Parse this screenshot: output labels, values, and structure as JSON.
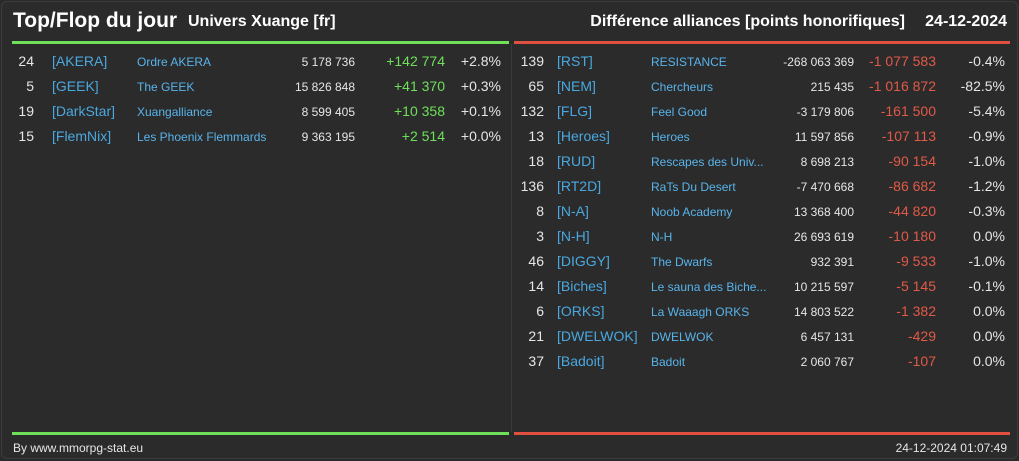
{
  "header": {
    "title": "Top/Flop du jour",
    "subtitle": "Univers Xuange [fr]",
    "metric": "Différence alliances [points honorifiques]",
    "date": "24-12-2024"
  },
  "colors": {
    "top_accent": "#6ee05a",
    "flop_accent": "#e05040",
    "tag": "#4aa8e0"
  },
  "top": [
    {
      "rank": "24",
      "tag": "[AKERA]",
      "name": "Ordre AKERA",
      "points": "5 178 736",
      "diff": "+142 774",
      "pct": "+2.8%"
    },
    {
      "rank": "5",
      "tag": "[GEEK]",
      "name": "The GEEK",
      "points": "15 826 848",
      "diff": "+41 370",
      "pct": "+0.3%"
    },
    {
      "rank": "19",
      "tag": "[DarkStar]",
      "name": "Xuangalliance",
      "points": "8 599 405",
      "diff": "+10 358",
      "pct": "+0.1%"
    },
    {
      "rank": "15",
      "tag": "[FlemNix]",
      "name": "Les Phoenix Flemmards",
      "points": "9 363 195",
      "diff": "+2 514",
      "pct": "+0.0%"
    }
  ],
  "flop": [
    {
      "rank": "139",
      "tag": "[RST]",
      "name": "RESISTANCE",
      "points": "-268 063 369",
      "diff": "-1 077 583",
      "pct": "-0.4%"
    },
    {
      "rank": "65",
      "tag": "[NEM]",
      "name": "Chercheurs",
      "points": "215 435",
      "diff": "-1 016 872",
      "pct": "-82.5%"
    },
    {
      "rank": "132",
      "tag": "[FLG]",
      "name": "Feel Good",
      "points": "-3 179 806",
      "diff": "-161 500",
      "pct": "-5.4%"
    },
    {
      "rank": "13",
      "tag": "[Heroes]",
      "name": "Heroes",
      "points": "11 597 856",
      "diff": "-107 113",
      "pct": "-0.9%"
    },
    {
      "rank": "18",
      "tag": "[RUD]",
      "name": "Rescapes des Univ...",
      "points": "8 698 213",
      "diff": "-90 154",
      "pct": "-1.0%"
    },
    {
      "rank": "136",
      "tag": "[RT2D]",
      "name": "RaTs Du Desert",
      "points": "-7 470 668",
      "diff": "-86 682",
      "pct": "-1.2%"
    },
    {
      "rank": "8",
      "tag": "[N-A]",
      "name": "Noob Academy",
      "points": "13 368 400",
      "diff": "-44 820",
      "pct": "-0.3%"
    },
    {
      "rank": "3",
      "tag": "[N-H]",
      "name": "N-H",
      "points": "26 693 619",
      "diff": "-10 180",
      "pct": "0.0%"
    },
    {
      "rank": "46",
      "tag": "[DIGGY]",
      "name": "The Dwarfs",
      "points": "932 391",
      "diff": "-9 533",
      "pct": "-1.0%"
    },
    {
      "rank": "14",
      "tag": "[Biches]",
      "name": "Le sauna des Biche...",
      "points": "10 215 597",
      "diff": "-5 145",
      "pct": "-0.1%"
    },
    {
      "rank": "6",
      "tag": "[ORKS]",
      "name": "La Waaagh ORKS",
      "points": "14 803 522",
      "diff": "-1 382",
      "pct": "0.0%"
    },
    {
      "rank": "21",
      "tag": "[DWELWOK]",
      "name": "DWELWOK",
      "points": "6 457 131",
      "diff": "-429",
      "pct": "0.0%"
    },
    {
      "rank": "37",
      "tag": "[Badoit]",
      "name": "Badoit",
      "points": "2 060 767",
      "diff": "-107",
      "pct": "0.0%"
    }
  ],
  "footer": {
    "credit": "By www.mmorpg-stat.eu",
    "timestamp": "24-12-2024 01:07:49"
  }
}
